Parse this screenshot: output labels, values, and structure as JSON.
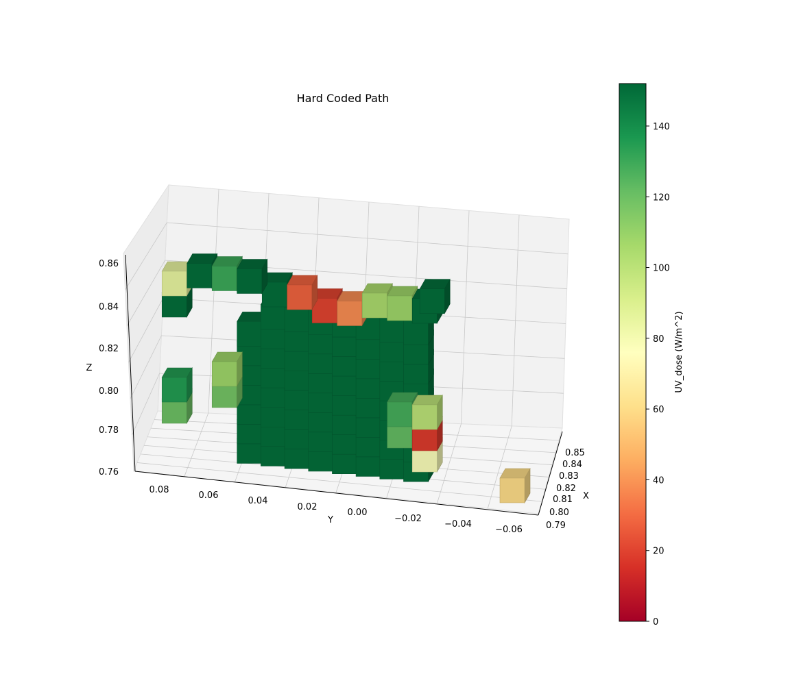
{
  "chart_data": {
    "type": "3d-voxel",
    "title": "Hard Coded Path",
    "xlabel": "X",
    "ylabel": "Y",
    "zlabel": "Z",
    "x_ticks": [
      "0.79",
      "0.80",
      "0.81",
      "0.82",
      "0.83",
      "0.84",
      "0.85"
    ],
    "y_ticks": [
      "0.08",
      "0.06",
      "0.04",
      "0.02",
      "0.00",
      "−0.02",
      "−0.04",
      "−0.06"
    ],
    "z_ticks": [
      "0.76",
      "0.78",
      "0.80",
      "0.82",
      "0.84",
      "0.86"
    ],
    "colorbar": {
      "label": "UV_dose (W/m^2)",
      "min": 0,
      "max": 152,
      "ticks": [
        "0",
        "20",
        "40",
        "60",
        "80",
        "100",
        "120",
        "140"
      ],
      "colormap": "RdYlGn"
    },
    "voxels": [
      {
        "y": 0.075,
        "z": 0.85,
        "dose": 85
      },
      {
        "y": 0.075,
        "z": 0.84,
        "dose": 150
      },
      {
        "y": 0.065,
        "z": 0.855,
        "dose": 150
      },
      {
        "y": 0.055,
        "z": 0.855,
        "dose": 130
      },
      {
        "y": 0.045,
        "z": 0.855,
        "dose": 150
      },
      {
        "y": 0.035,
        "z": 0.85,
        "dose": 150
      },
      {
        "y": 0.025,
        "z": 0.85,
        "dose": 28
      },
      {
        "y": 0.015,
        "z": 0.845,
        "dose": 20
      },
      {
        "y": 0.005,
        "z": 0.845,
        "dose": 38
      },
      {
        "y": -0.005,
        "z": 0.85,
        "dose": 105
      },
      {
        "y": -0.015,
        "z": 0.85,
        "dose": 108
      },
      {
        "y": -0.025,
        "z": 0.85,
        "dose": 150
      },
      {
        "y": -0.028,
        "z": 0.855,
        "dose": 150
      },
      {
        "y": 0.055,
        "z": 0.81,
        "dose": 108
      },
      {
        "y": 0.055,
        "z": 0.8,
        "dose": 118
      },
      {
        "y": 0.075,
        "z": 0.8,
        "dose": 135
      },
      {
        "y": 0.075,
        "z": 0.79,
        "dose": 120
      },
      {
        "y": -0.015,
        "z": 0.8,
        "dose": 128
      },
      {
        "y": -0.015,
        "z": 0.79,
        "dose": 122
      },
      {
        "y": -0.025,
        "z": 0.8,
        "dose": 100
      },
      {
        "y": -0.025,
        "z": 0.79,
        "dose": 18
      },
      {
        "y": -0.025,
        "z": 0.78,
        "dose": 78
      },
      {
        "y": -0.06,
        "z": 0.77,
        "dose": 60
      }
    ]
  }
}
